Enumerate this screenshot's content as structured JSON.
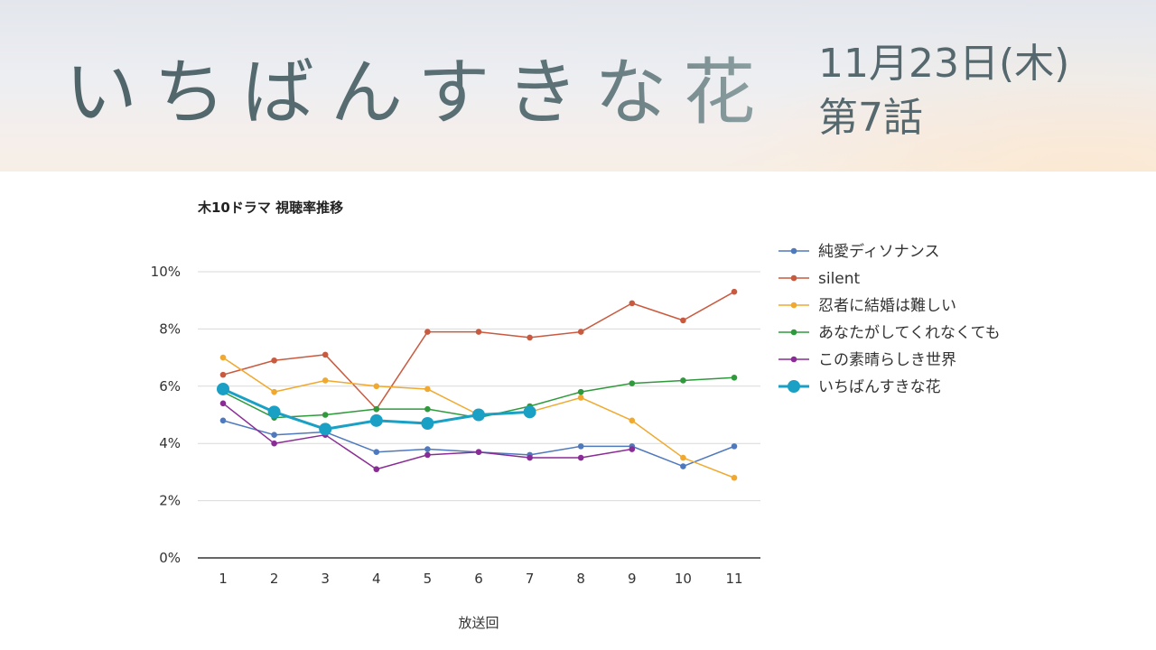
{
  "header": {
    "show_title": "いちばんすきな花",
    "date": "11月23日(木)",
    "episode": "第7話"
  },
  "chart_data": {
    "type": "line",
    "title": "木10ドラマ 視聴率推移",
    "xlabel": "放送回",
    "ylabel": "",
    "x": [
      1,
      2,
      3,
      4,
      5,
      6,
      7,
      8,
      9,
      10,
      11
    ],
    "ylim": [
      0,
      10
    ],
    "yticks": [
      "0%",
      "2%",
      "4%",
      "6%",
      "8%",
      "10%"
    ],
    "grid": true,
    "legend_position": "right",
    "series": [
      {
        "name": "純愛ディソナンス",
        "color": "#4f79bd",
        "highlight": false,
        "values": [
          4.8,
          4.3,
          4.4,
          3.7,
          3.8,
          3.7,
          3.6,
          3.9,
          3.9,
          3.2,
          3.9
        ]
      },
      {
        "name": "silent",
        "color": "#c95a3f",
        "highlight": false,
        "values": [
          6.4,
          6.9,
          7.1,
          5.2,
          7.9,
          7.9,
          7.7,
          7.9,
          8.9,
          8.3,
          9.3
        ]
      },
      {
        "name": "忍者に結婚は難しい",
        "color": "#f0a92e",
        "highlight": false,
        "values": [
          7.0,
          5.8,
          6.2,
          6.0,
          5.9,
          5.0,
          5.1,
          5.6,
          4.8,
          3.5,
          2.8
        ]
      },
      {
        "name": "あなたがしてくれなくても",
        "color": "#2f9a3c",
        "highlight": false,
        "values": [
          5.8,
          4.9,
          5.0,
          5.2,
          5.2,
          4.9,
          5.3,
          5.8,
          6.1,
          6.2,
          6.3
        ]
      },
      {
        "name": "この素晴らしき世界",
        "color": "#8a2c95",
        "highlight": false,
        "values": [
          5.4,
          4.0,
          4.3,
          3.1,
          3.6,
          3.7,
          3.5,
          3.5,
          3.8,
          null,
          null
        ]
      },
      {
        "name": "いちばんすきな花",
        "color": "#1aa0c4",
        "highlight": true,
        "values": [
          5.9,
          5.1,
          4.5,
          4.8,
          4.7,
          5.0,
          5.1,
          null,
          null,
          null,
          null
        ]
      }
    ]
  }
}
